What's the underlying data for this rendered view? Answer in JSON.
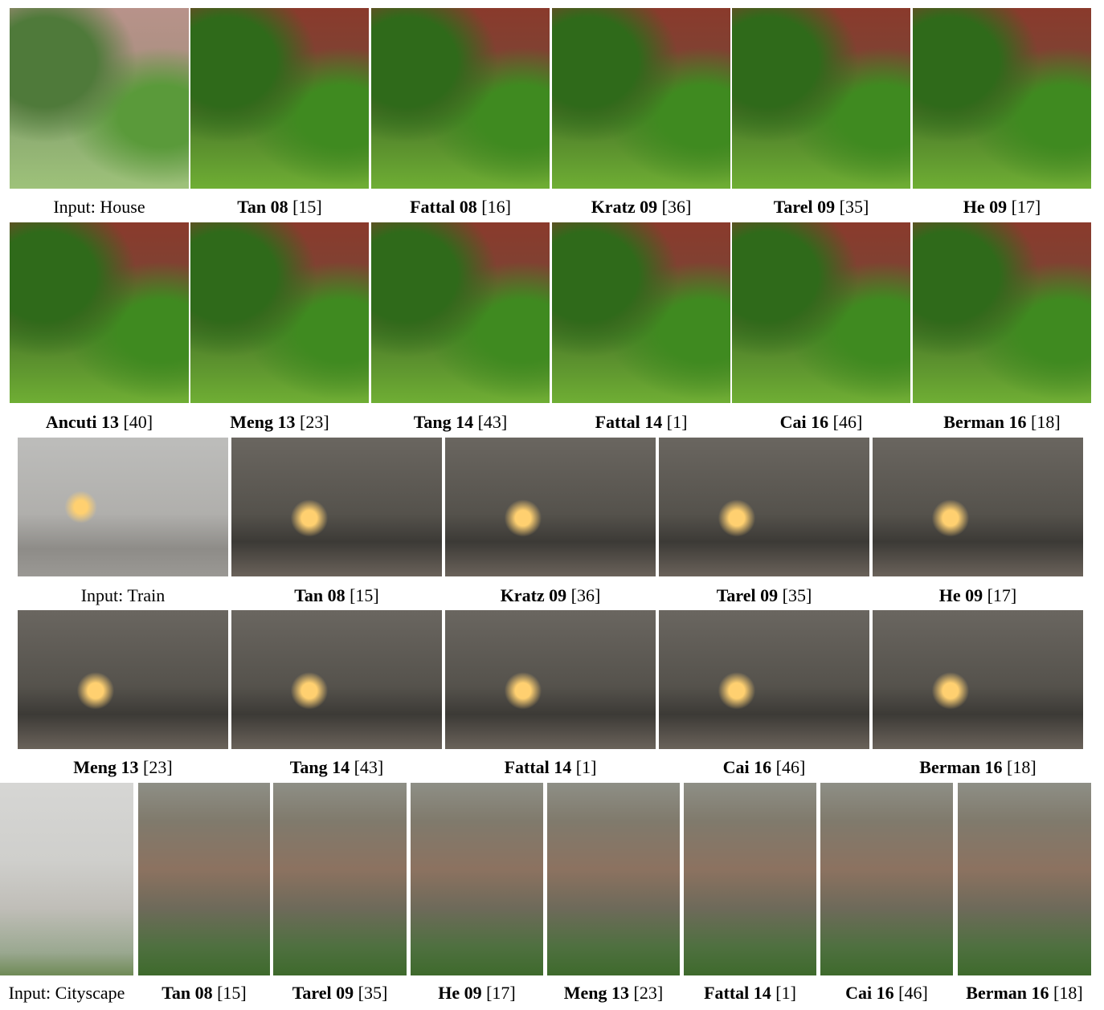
{
  "figure": {
    "rows": [
      {
        "panels": [
          {
            "name": "Input: House"
          },
          {
            "method": "Tan 08",
            "ref": "[15]"
          },
          {
            "method": "Fattal 08",
            "ref": "[16]"
          },
          {
            "method": "Kratz 09",
            "ref": "[36]"
          },
          {
            "method": "Tarel 09",
            "ref": "[35]"
          },
          {
            "method": "He 09",
            "ref": "[17]"
          }
        ]
      },
      {
        "panels": [
          {
            "method": "Ancuti 13",
            "ref": "[40]"
          },
          {
            "method": "Meng 13",
            "ref": "[23]"
          },
          {
            "method": "Tang 14",
            "ref": "[43]"
          },
          {
            "method": "Fattal 14",
            "ref": "[1]"
          },
          {
            "method": "Cai 16",
            "ref": "[46]"
          },
          {
            "method": "Berman 16",
            "ref": "[18]"
          }
        ]
      },
      {
        "panels": [
          {
            "name": "Input: Train"
          },
          {
            "method": "Tan 08",
            "ref": "[15]"
          },
          {
            "method": "Kratz 09",
            "ref": "[36]"
          },
          {
            "method": "Tarel 09",
            "ref": "[35]"
          },
          {
            "method": "He 09",
            "ref": "[17]"
          }
        ]
      },
      {
        "panels": [
          {
            "method": "Meng 13",
            "ref": "[23]"
          },
          {
            "method": "Tang 14",
            "ref": "[43]"
          },
          {
            "method": "Fattal 14",
            "ref": "[1]"
          },
          {
            "method": "Cai 16",
            "ref": "[46]"
          },
          {
            "method": "Berman 16",
            "ref": "[18]"
          }
        ]
      },
      {
        "panels": [
          {
            "name": "Input: Cityscape"
          },
          {
            "method": "Tan 08",
            "ref": "[15]"
          },
          {
            "method": "Tarel 09",
            "ref": "[35]"
          },
          {
            "method": "He 09",
            "ref": "[17]"
          },
          {
            "method": "Meng 13",
            "ref": "[23]"
          },
          {
            "method": "Fattal 14",
            "ref": "[1]"
          },
          {
            "method": "Cai 16",
            "ref": "[46]"
          },
          {
            "method": "Berman 16",
            "ref": "[18]"
          }
        ]
      }
    ]
  }
}
